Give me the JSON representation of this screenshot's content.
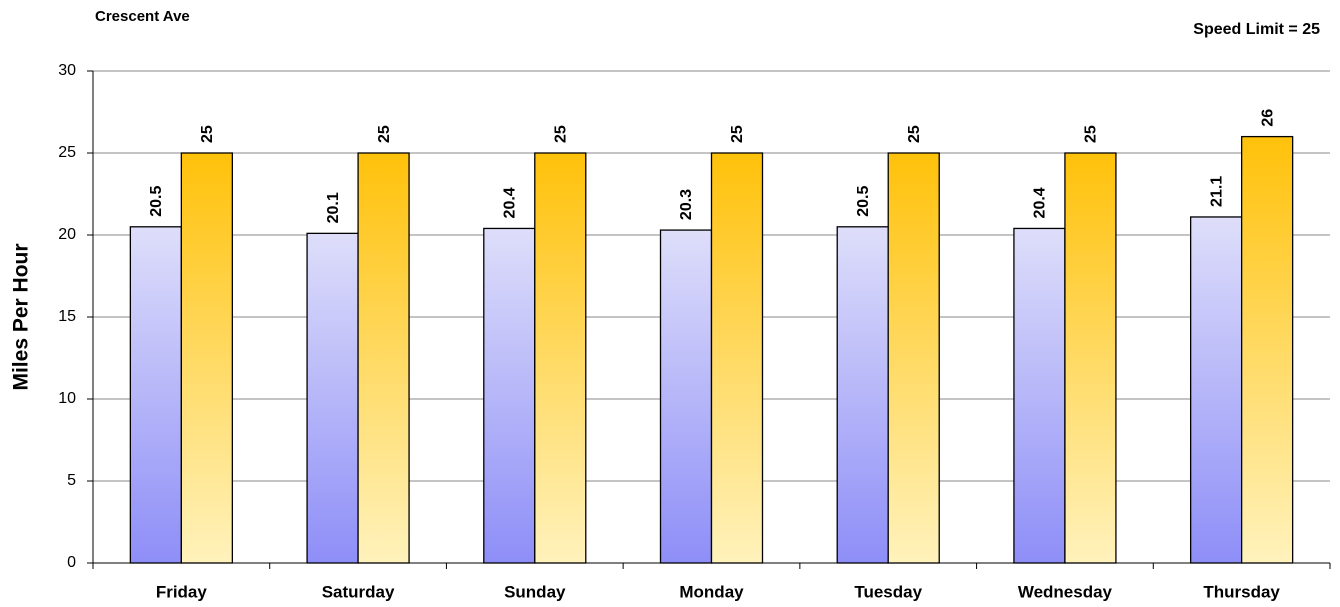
{
  "chart_data": {
    "type": "bar",
    "title": "Crescent Ave",
    "subtitle": "Speed Limit = 25",
    "y_label": "Miles Per Hour",
    "categories": [
      "Friday",
      "Saturday",
      "Sunday",
      "Monday",
      "Tuesday",
      "Wednesday",
      "Thursday"
    ],
    "series": [
      {
        "gradient": [
          "#dedefa",
          "#8e8ef8"
        ],
        "values": [
          20.5,
          20.1,
          20.4,
          20.3,
          20.5,
          20.4,
          21.1
        ]
      },
      {
        "gradient": [
          "#ffc10a",
          "#fff2bc"
        ],
        "values": [
          25,
          25,
          25,
          25,
          25,
          25,
          26
        ]
      }
    ],
    "ylim": [
      0,
      30
    ],
    "yticks": [
      0,
      5,
      10,
      15,
      20,
      25,
      30
    ],
    "grid": true,
    "data_labels": true
  }
}
